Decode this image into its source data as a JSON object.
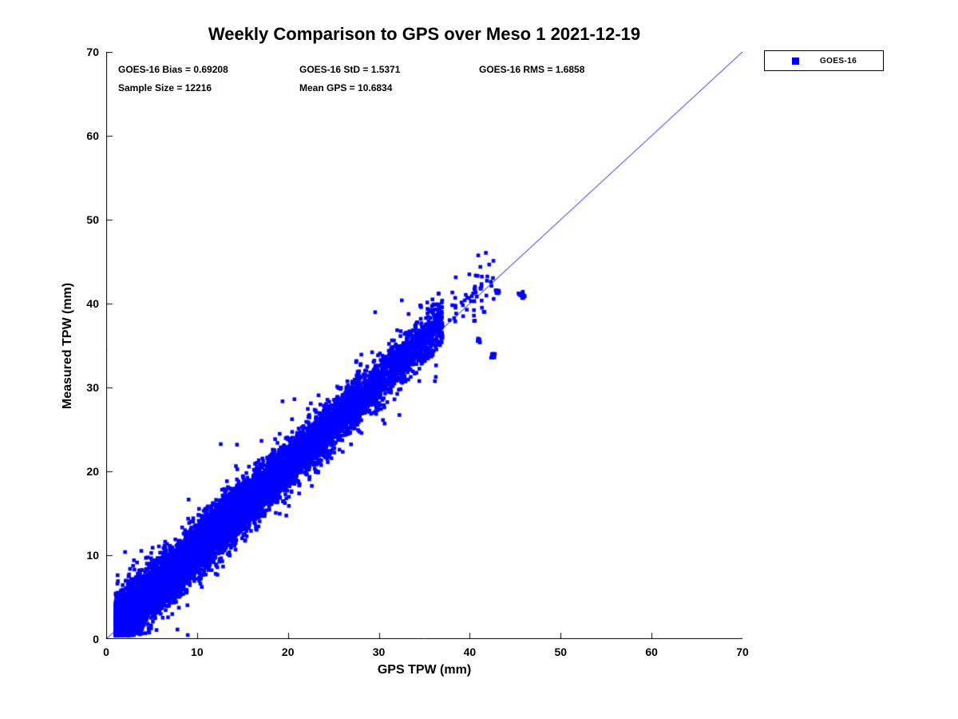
{
  "chart_data": {
    "type": "scatter",
    "title": "Weekly Comparison to GPS over Meso 1 2021-12-19",
    "xlabel": "GPS TPW (mm)",
    "ylabel": "Measured TPW (mm)",
    "xlim": [
      0,
      70
    ],
    "ylim": [
      0,
      70
    ],
    "xticks": [
      0,
      10,
      20,
      30,
      40,
      50,
      60,
      70
    ],
    "yticks": [
      0,
      10,
      20,
      30,
      40,
      50,
      60,
      70
    ],
    "grid": false,
    "axis_color": "#000000",
    "legend_position": "outside-top-right",
    "annotations": {
      "bias": "GOES-16 Bias = 0.69208",
      "std": "GOES-16 StD = 1.5371",
      "rms": "GOES-16 RMS = 1.6858",
      "sample_size": "Sample Size = 12216",
      "mean_gps": "Mean GPS = 10.6834"
    },
    "series": [
      {
        "name": "GOES-16",
        "marker": "filled-square",
        "color": "#0000FF",
        "n_points": 12216,
        "bias": 0.69208,
        "std": 1.5371,
        "rms": 1.6858,
        "mean_gps": 10.6834,
        "x_min": 0.8,
        "x_max": 46.3,
        "relation": "y ≈ x + bias; dense cluster for x 1–15, band to ~37, sparse clusters 38–46"
      }
    ],
    "reference_line": {
      "type": "identity",
      "x": [
        0,
        70
      ],
      "y": [
        0,
        70
      ],
      "color": "#0000FF"
    }
  }
}
